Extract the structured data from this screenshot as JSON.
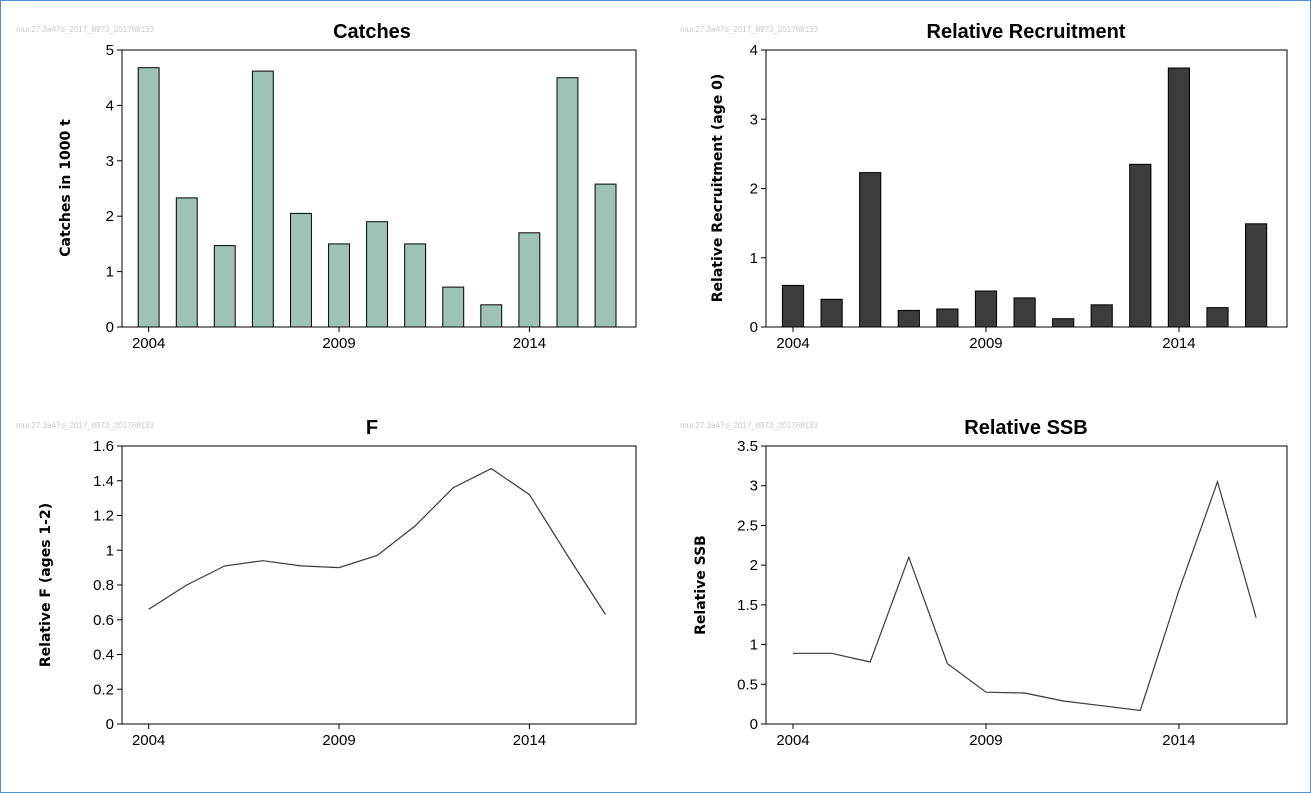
{
  "colors": {
    "frame_border": "#4f8fd6",
    "catches_bar": "#9cc3b5",
    "recruitment_bar": "#3c3c3c",
    "line": "#3a3a3a",
    "axis": "#000000",
    "watermark": "#c8c8c8"
  },
  "chart_data": [
    {
      "id": "catches",
      "type": "bar",
      "title": "Catches",
      "watermark": "mur.27.3a47d_2017_8973_201768133",
      "ylabel": "Catches in 1000 t",
      "xlabel": "",
      "xlim": [
        2003.3,
        2016.8
      ],
      "ylim": [
        0,
        5
      ],
      "yticks": [
        "0",
        "1",
        "2",
        "3",
        "4",
        "5"
      ],
      "xticks": [
        "2004",
        "2009",
        "2014"
      ],
      "x": [
        2004,
        2005,
        2006,
        2007,
        2008,
        2009,
        2010,
        2011,
        2012,
        2013,
        2014,
        2015,
        2016
      ],
      "values": [
        4.68,
        2.33,
        1.47,
        4.62,
        2.05,
        1.5,
        1.9,
        1.5,
        0.72,
        0.4,
        1.7,
        4.5,
        2.58
      ],
      "bar_color": "#9cc3b5"
    },
    {
      "id": "recruitment",
      "type": "bar",
      "title": "Relative Recruitment",
      "watermark": "mur.27.3a47d_2017_8973_201768133",
      "ylabel": "Relative Recruitment (age 0)",
      "xlabel": "",
      "xlim": [
        2003.3,
        2016.8
      ],
      "ylim": [
        0,
        4
      ],
      "yticks": [
        "0",
        "1",
        "2",
        "3",
        "4"
      ],
      "xticks": [
        "2004",
        "2009",
        "2014"
      ],
      "x": [
        2004,
        2005,
        2006,
        2007,
        2008,
        2009,
        2010,
        2011,
        2012,
        2013,
        2014,
        2015,
        2016
      ],
      "values": [
        0.6,
        0.4,
        2.23,
        0.24,
        0.26,
        0.52,
        0.42,
        0.12,
        0.32,
        2.35,
        3.74,
        0.28,
        1.49
      ],
      "bar_color": "#3c3c3c"
    },
    {
      "id": "f",
      "type": "line",
      "title": "F",
      "watermark": "mur.27.3a47d_2017_8973_201768133",
      "ylabel": "Relative F (ages 1-2)",
      "xlabel": "",
      "xlim": [
        2003.3,
        2016.8
      ],
      "ylim": [
        0,
        1.6
      ],
      "yticks": [
        "0",
        "0.2",
        "0.4",
        "0.6",
        "0.8",
        "1",
        "1.2",
        "1.4",
        "1.6"
      ],
      "xticks": [
        "2004",
        "2009",
        "2014"
      ],
      "x": [
        2004,
        2005,
        2006,
        2007,
        2008,
        2009,
        2010,
        2011,
        2012,
        2013,
        2014,
        2015,
        2016
      ],
      "values": [
        0.66,
        0.8,
        0.91,
        0.94,
        0.91,
        0.9,
        0.97,
        1.14,
        1.36,
        1.47,
        1.32,
        0.97,
        0.63
      ],
      "line_color": "#3a3a3a"
    },
    {
      "id": "ssb",
      "type": "line",
      "title": "Relative SSB",
      "watermark": "mur.27.3a47d_2017_8973_201768133",
      "ylabel": "Relative SSB",
      "xlabel": "",
      "xlim": [
        2003.3,
        2016.8
      ],
      "ylim": [
        0,
        3.5
      ],
      "yticks": [
        "0",
        "0.5",
        "1",
        "1.5",
        "2",
        "2.5",
        "3",
        "3.5"
      ],
      "xticks": [
        "2004",
        "2009",
        "2014"
      ],
      "x": [
        2004,
        2005,
        2006,
        2007,
        2008,
        2009,
        2010,
        2011,
        2012,
        2013,
        2014,
        2015,
        2016
      ],
      "values": [
        0.89,
        0.89,
        0.78,
        2.1,
        0.76,
        0.4,
        0.39,
        0.29,
        0.23,
        0.17,
        1.68,
        3.05,
        1.34
      ],
      "line_color": "#3a3a3a"
    }
  ]
}
